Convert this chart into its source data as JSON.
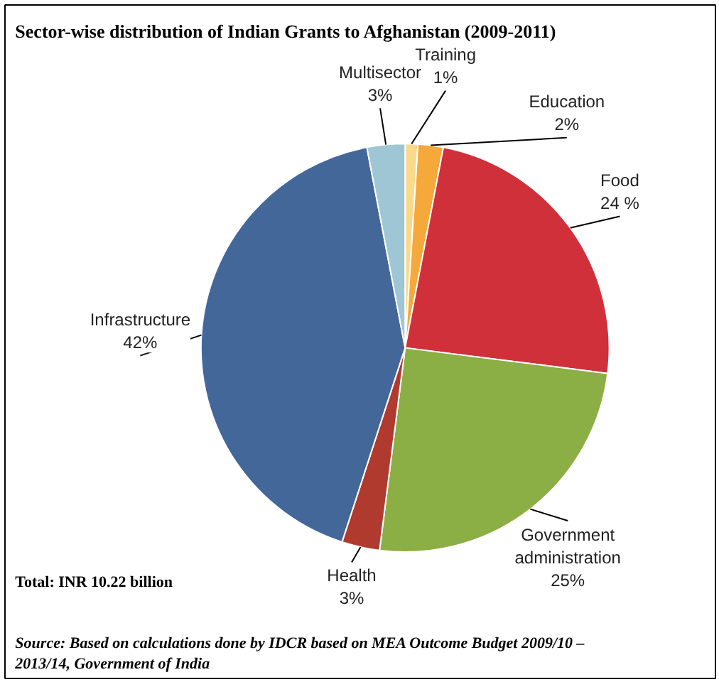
{
  "chart_data": {
    "type": "pie",
    "title": "Sector-wise distribution of Indian Grants to Afghanistan (2009-2011)",
    "categories": [
      "Training",
      "Education",
      "Food",
      "Government administration",
      "Health",
      "Infrastructure",
      "Multisector"
    ],
    "values": [
      1,
      2,
      24,
      25,
      3,
      42,
      3
    ],
    "value_labels": [
      "1%",
      "2%",
      "24 %",
      "25%",
      "3%",
      "42%",
      "3%"
    ],
    "colors": [
      "#f9d98a",
      "#f5a93a",
      "#d0303a",
      "#8bae45",
      "#b13a2f",
      "#44679a",
      "#9fc6d4"
    ],
    "annotations": [
      "Total: INR 10.22 billion",
      "Source: Based on calculations done by IDCR based on MEA Outcome Budget 2009/10 – 2013/14, Government  of India"
    ]
  }
}
